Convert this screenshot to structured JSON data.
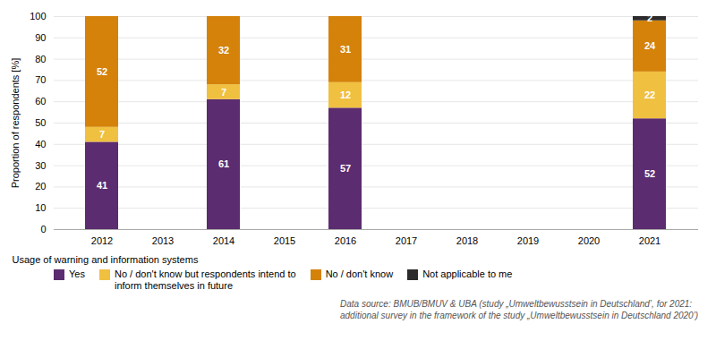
{
  "chart_data": {
    "type": "bar",
    "stacked": true,
    "categories": [
      "2012",
      "2013",
      "2014",
      "2015",
      "2016",
      "2017",
      "2018",
      "2019",
      "2020",
      "2021"
    ],
    "series": [
      {
        "name": "Yes",
        "color": "#5B2C6F",
        "values": [
          41,
          null,
          61,
          null,
          57,
          null,
          null,
          null,
          null,
          52
        ]
      },
      {
        "name": "No / don't know but respondents intend to\ninform themselves in future",
        "color": "#F0C040",
        "values": [
          7,
          null,
          7,
          null,
          12,
          null,
          null,
          null,
          null,
          22
        ]
      },
      {
        "name": "No / don't know",
        "color": "#D4820A",
        "values": [
          52,
          null,
          32,
          null,
          31,
          null,
          null,
          null,
          null,
          24
        ]
      },
      {
        "name": "Not applicable to me",
        "color": "#2C2C2C",
        "values": [
          0,
          null,
          0,
          null,
          0,
          null,
          null,
          null,
          null,
          2
        ]
      }
    ],
    "xlabel": "Usage of warning and information systems",
    "ylabel": "Proportion of respondents [%]",
    "ylim": [
      0,
      100
    ],
    "yticks": [
      0,
      10,
      20,
      30,
      40,
      50,
      60,
      70,
      80,
      90,
      100
    ],
    "grid": true,
    "legend": "bottom",
    "data_labels": true,
    "annotations": [
      "Data source: BMUB/BMUV & UBA (study „Umweltbewusstsein in Deutschland’, for 2021:\nadditional survey in the framework of the study „Umweltbewusstsein in Deutschland 2020’)"
    ]
  }
}
